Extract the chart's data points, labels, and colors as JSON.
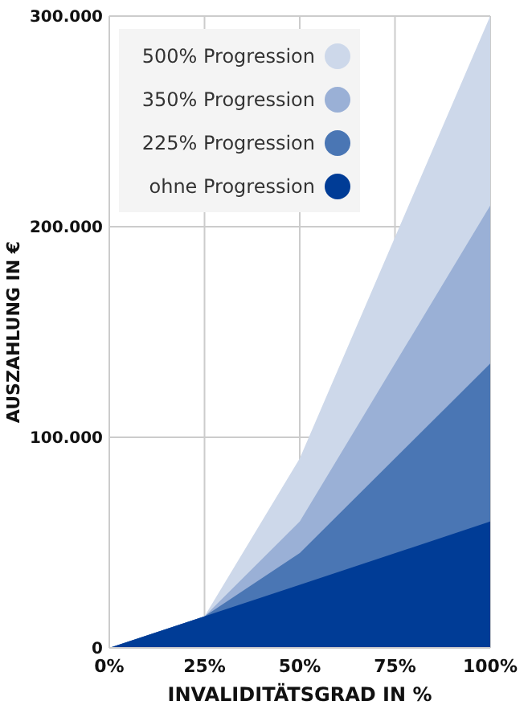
{
  "chart_data": {
    "type": "area",
    "xlabel": "INVALIDITÄTSGRAD IN %",
    "ylabel": "AUSZAHLUNG IN €",
    "xlim": [
      0,
      100
    ],
    "xticks": [
      {
        "value": 0,
        "label": "0%"
      },
      {
        "value": 25,
        "label": "25%"
      },
      {
        "value": 50,
        "label": "50%"
      },
      {
        "value": 75,
        "label": "75%"
      },
      {
        "value": 100,
        "label": "100%"
      }
    ],
    "ylim": [
      0,
      300000
    ],
    "yticks": [
      {
        "value": 0,
        "label": "0"
      },
      {
        "value": 100000,
        "label": "100.000"
      },
      {
        "value": 200000,
        "label": "200.000"
      },
      {
        "value": 300000,
        "label": "300.000"
      }
    ],
    "grid": true,
    "legend": "top left",
    "series": [
      {
        "name": "500% Progression",
        "color": "#cdd8ea",
        "x": [
          0,
          25,
          50,
          100
        ],
        "values": [
          0,
          15000,
          90000,
          300000
        ]
      },
      {
        "name": "350% Progression",
        "color": "#9ab0d6",
        "x": [
          0,
          25,
          50,
          100
        ],
        "values": [
          0,
          15000,
          60000,
          210000
        ]
      },
      {
        "name": "225% Progression",
        "color": "#4a76b4",
        "x": [
          0,
          25,
          50,
          100
        ],
        "values": [
          0,
          15000,
          45000,
          135000
        ]
      },
      {
        "name": "ohne Progression",
        "color": "#003c96",
        "x": [
          0,
          25,
          50,
          100
        ],
        "values": [
          0,
          15000,
          30000,
          60000
        ]
      }
    ]
  }
}
